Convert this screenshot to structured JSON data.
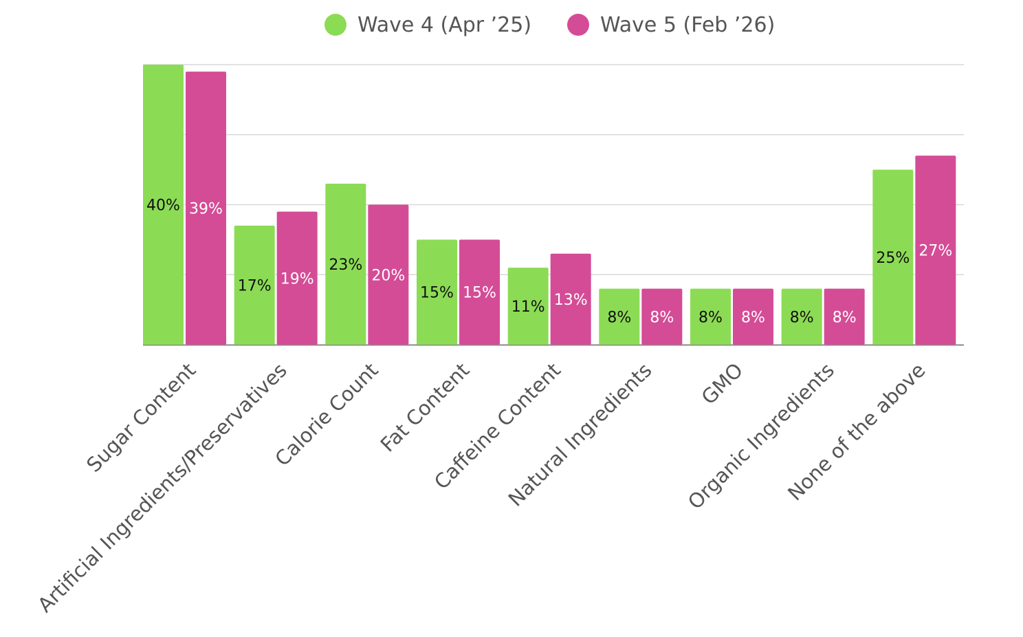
{
  "chart_data": {
    "type": "bar",
    "title": "",
    "xlabel": "",
    "ylabel": "",
    "ylim": [
      0,
      40
    ],
    "grid": true,
    "legend_position": "top-center",
    "categories": [
      "Sugar Content",
      "Artificial Ingredients/Preservatives",
      "Calorie Count",
      "Fat Content",
      "Caffeine Content",
      "Natural Ingredients",
      "GMO",
      "Organic Ingredients",
      "None of the above"
    ],
    "series": [
      {
        "name": "Wave 4 (Apr ’25)",
        "color": "#8cdb55",
        "label_color": "#111111",
        "values": [
          40,
          17,
          23,
          15,
          11,
          8,
          8,
          8,
          25
        ],
        "labels": [
          "40%",
          "17%",
          "23%",
          "15%",
          "11%",
          "8%",
          "8%",
          "8%",
          "25%"
        ]
      },
      {
        "name": "Wave 5 (Feb ’26)",
        "color": "#d44c96",
        "label_color": "#ffffff",
        "values": [
          39,
          19,
          20,
          15,
          13,
          8,
          8,
          8,
          27
        ],
        "labels": [
          "39%",
          "19%",
          "20%",
          "15%",
          "13%",
          "8%",
          "8%",
          "8%",
          "27%"
        ]
      }
    ]
  }
}
